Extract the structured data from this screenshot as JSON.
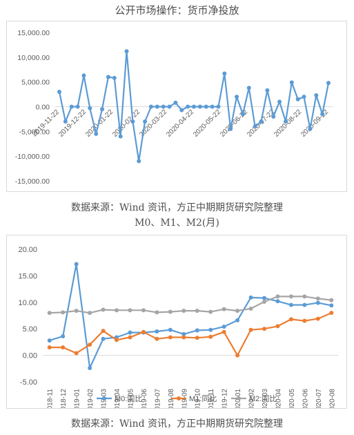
{
  "chart1": {
    "title": "公开市场操作：货币净投放",
    "source": "数据来源：Wind 资讯，方正中期期货研究院整理"
  },
  "chart2": {
    "title": "M0、M1、M2(月)",
    "source": "数据来源：Wind 资讯，方正中期期货研究院整理"
  },
  "chart_data": [
    {
      "type": "line",
      "title": "公开市场操作：货币净投放",
      "ylim": [
        -15000,
        15000
      ],
      "yticks": [
        15000,
        10000,
        5000,
        0,
        -5000,
        -10000,
        -15000
      ],
      "ytick_labels": [
        "15,000.00",
        "10,000.00",
        "5,000.00",
        "0.00",
        "-5,000.00",
        "-10,000.00",
        "-15,000.00"
      ],
      "xtick_labels": [
        "2019-11-22",
        "2019-12-22",
        "2020-01-22",
        "2020-02-22",
        "2020-03-22",
        "2020-04-22",
        "2020-05-22",
        "2020-06-22",
        "2020-07-22",
        "2020-08-22",
        "2020-09-22"
      ],
      "grid": false,
      "color": "#5b9bd5",
      "series": [
        {
          "values": [
            3000,
            -3000,
            0,
            0,
            6300,
            -300,
            -5500,
            -500,
            6000,
            5800,
            -6000,
            11200,
            -3000,
            -11000,
            -3000,
            0,
            0,
            0,
            0,
            800,
            -700,
            0,
            0,
            0,
            0,
            0,
            0,
            6700,
            -4500,
            2000,
            -1500,
            3800,
            -4000,
            -3000,
            3300,
            -2000,
            1000,
            -3000,
            4900,
            1500,
            2000,
            -4500,
            2300,
            -1500,
            4800
          ]
        }
      ]
    },
    {
      "type": "line",
      "title": "M0、M1、M2(月)",
      "ylim": [
        -5,
        20
      ],
      "yticks": [
        -5,
        0,
        5,
        10,
        15,
        20
      ],
      "ytick_labels": [
        "-5.00",
        "0.00",
        "5.00",
        "10.00",
        "15.00",
        "20.00"
      ],
      "categories": [
        "2018-11",
        "2018-12",
        "2019-01",
        "2019-02",
        "2019-03",
        "2019-04",
        "2019-05",
        "2019-06",
        "2019-07",
        "2019-08",
        "2019-09",
        "2019-10",
        "2019-11",
        "2019-12",
        "2020-01",
        "2020-02",
        "2020-03",
        "2020-04",
        "2020-05",
        "2020-06",
        "2020-07",
        "2020-08"
      ],
      "legend_position": "bottom",
      "grid": false,
      "series": [
        {
          "name": "M0:同比",
          "color": "#5b9bd5",
          "values": [
            2.8,
            3.6,
            17.2,
            -2.4,
            3.1,
            3.4,
            4.3,
            4.3,
            4.5,
            4.8,
            4.0,
            4.7,
            4.8,
            5.4,
            6.6,
            10.9,
            10.8,
            10.2,
            9.5,
            9.5,
            9.9,
            9.4
          ]
        },
        {
          "name": "M1:同比",
          "color": "#ed7d31",
          "values": [
            1.5,
            1.5,
            0.4,
            2.0,
            4.6,
            2.9,
            3.4,
            4.4,
            3.1,
            3.4,
            3.4,
            3.3,
            3.5,
            4.4,
            0.0,
            4.8,
            5.0,
            5.5,
            6.8,
            6.5,
            6.9,
            8.0
          ]
        },
        {
          "name": "M2:同比",
          "color": "#a5a5a5",
          "values": [
            8.0,
            8.1,
            8.4,
            8.0,
            8.6,
            8.5,
            8.5,
            8.5,
            8.1,
            8.2,
            8.4,
            8.4,
            8.2,
            8.7,
            8.4,
            8.8,
            10.1,
            11.1,
            11.1,
            11.1,
            10.7,
            10.4
          ]
        }
      ]
    }
  ]
}
